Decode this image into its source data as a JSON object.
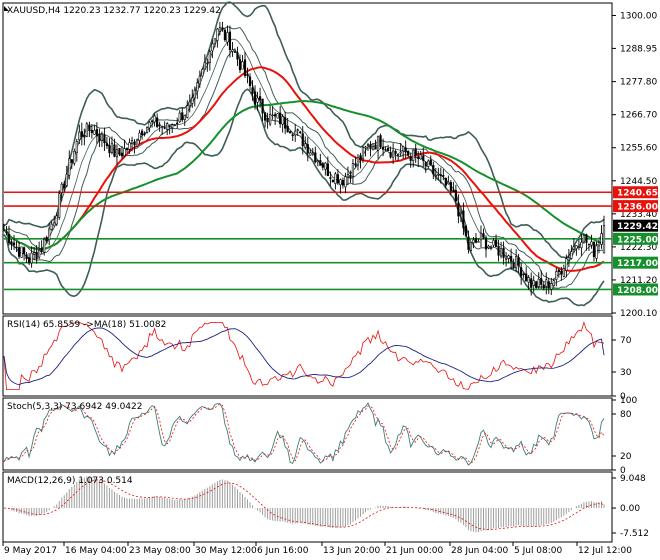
{
  "chart_data": [
    {
      "type": "candlestick",
      "title": "XAUUSD,H4  1220.23 1232.77 1220.23 1229.42",
      "ylim": [
        1198,
        1304
      ],
      "y_ticks": [
        "1300.00",
        "1288.95",
        "1277.80",
        "1266.70",
        "1255.60",
        "1244.50",
        "1233.40",
        "1222.30",
        "1211.20",
        "1200.10"
      ],
      "x_ticks": [
        "9 May 2017",
        "16 May 04:00",
        "23 May 08:00",
        "30 May 12:00",
        "6 Jun 16:00",
        "13 Jun 20:00",
        "21 Jun 00:00",
        "28 Jun 04:00",
        "5 Jul 08:00",
        "12 Jul 12:00"
      ],
      "price_path": [
        [
          0,
          1228
        ],
        [
          5,
          1222
        ],
        [
          10,
          1218
        ],
        [
          15,
          1222
        ],
        [
          20,
          1232
        ],
        [
          25,
          1247
        ],
        [
          30,
          1260
        ],
        [
          35,
          1262
        ],
        [
          40,
          1258
        ],
        [
          45,
          1253
        ],
        [
          50,
          1256
        ],
        [
          55,
          1262
        ],
        [
          60,
          1264
        ],
        [
          65,
          1262
        ],
        [
          70,
          1266
        ],
        [
          75,
          1270
        ],
        [
          80,
          1284
        ],
        [
          85,
          1296
        ],
        [
          90,
          1291
        ],
        [
          95,
          1282
        ],
        [
          100,
          1272
        ],
        [
          105,
          1266
        ],
        [
          110,
          1265
        ],
        [
          115,
          1262
        ],
        [
          120,
          1257
        ],
        [
          125,
          1252
        ],
        [
          130,
          1247
        ],
        [
          135,
          1245
        ],
        [
          140,
          1250
        ],
        [
          145,
          1256
        ],
        [
          150,
          1258
        ],
        [
          155,
          1254
        ],
        [
          160,
          1254
        ],
        [
          165,
          1252
        ],
        [
          170,
          1248
        ],
        [
          175,
          1244
        ],
        [
          180,
          1238
        ],
        [
          185,
          1222
        ],
        [
          190,
          1225
        ],
        [
          195,
          1222
        ],
        [
          200,
          1220
        ],
        [
          205,
          1216
        ],
        [
          210,
          1210
        ],
        [
          215,
          1209
        ],
        [
          220,
          1212
        ],
        [
          225,
          1220
        ],
        [
          230,
          1226
        ],
        [
          235,
          1221
        ],
        [
          239,
          1229.42
        ]
      ],
      "levels": [
        {
          "value": 1240.65,
          "label": "1240.65",
          "color": "#e8120c"
        },
        {
          "value": 1236.0,
          "label": "1236.00",
          "color": "#e8120c"
        },
        {
          "value": 1229.42,
          "label": "1229.42",
          "color": "#000000"
        },
        {
          "value": 1225.0,
          "label": "1225.00",
          "color": "#16902c"
        },
        {
          "value": 1217.0,
          "label": "1217.00",
          "color": "#16902c"
        },
        {
          "value": 1208.0,
          "label": "1208.00",
          "color": "#16902c"
        }
      ],
      "colors": {
        "bands": "#3d5d56",
        "fast_ma": "#e8120c",
        "slow_ma": "#16902c",
        "candles": "#000000"
      }
    },
    {
      "type": "line",
      "title": "RSI(14) 65.8559  ->MA(18) 51.0082",
      "ylim": [
        0,
        100
      ],
      "y_ticks": [
        "70",
        "30",
        "0"
      ],
      "series": [
        {
          "name": "RSI(14)",
          "last": 65.8559,
          "color": "#e8120c"
        },
        {
          "name": "MA(18)",
          "last": 51.0082,
          "color": "#1a237e"
        }
      ]
    },
    {
      "type": "line",
      "title": "Stoch(5,3,3) 73.6942 49.0422",
      "ylim": [
        0,
        100
      ],
      "y_ticks": [
        "100",
        "80",
        "20",
        "0"
      ],
      "series": [
        {
          "name": "%K",
          "last": 73.6942,
          "color": "#3d7f7a"
        },
        {
          "name": "%D",
          "last": 49.0422,
          "color": "#e8120c"
        }
      ]
    },
    {
      "type": "bar",
      "title": "MACD(12,26,9) 1.073 0.514",
      "ylim": [
        -7.512,
        9.048
      ],
      "y_ticks": [
        "9.048",
        "0.00",
        "-7.512"
      ],
      "series": [
        {
          "name": "MACD",
          "last": 1.073,
          "color": "#9e9e9e"
        },
        {
          "name": "Signal",
          "last": 0.514,
          "color": "#e8120c"
        }
      ]
    }
  ]
}
